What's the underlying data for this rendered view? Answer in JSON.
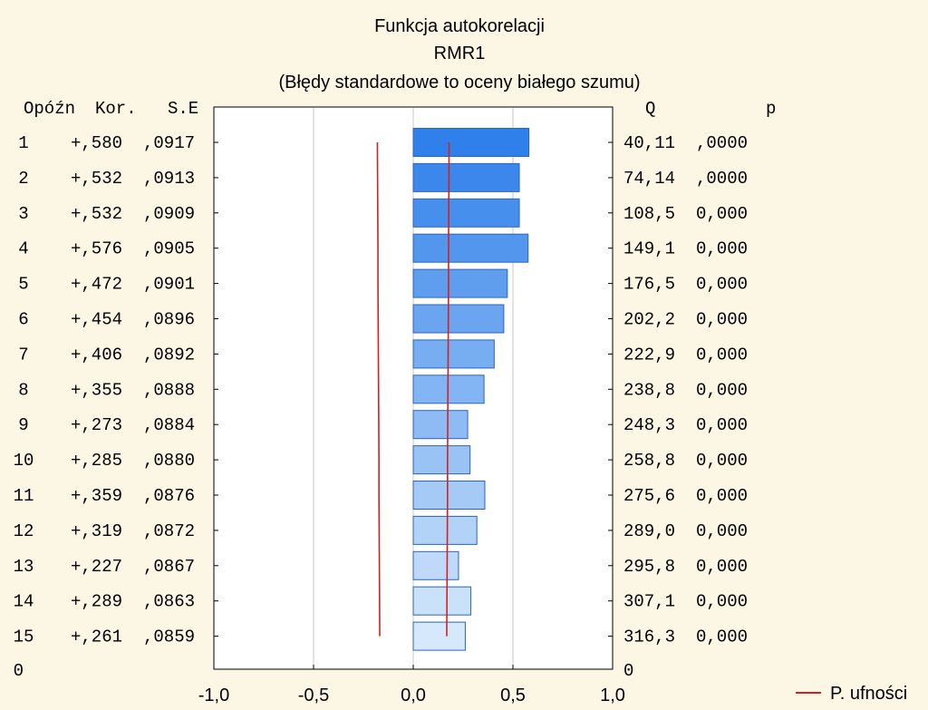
{
  "chart_data": {
    "type": "bar",
    "orientation": "horizontal",
    "title": "Funkcja autokorelacji",
    "subtitle": "RMR1",
    "subtitle2": "(Błędy standardowe to oceny białego szumu)",
    "columns": {
      "lag": "Opóźn",
      "corr": "Kor.",
      "se": "S.E",
      "q": "Q",
      "p": "p"
    },
    "rows": [
      {
        "lag": "1",
        "corr_text": "+,580",
        "se_text": ",0917",
        "q_text": "40,11",
        "p_text": ",0000",
        "corr": 0.58,
        "se": 0.0917,
        "q": 40.11,
        "p": 0.0
      },
      {
        "lag": "2",
        "corr_text": "+,532",
        "se_text": ",0913",
        "q_text": "74,14",
        "p_text": ",0000",
        "corr": 0.532,
        "se": 0.0913,
        "q": 74.14,
        "p": 0.0
      },
      {
        "lag": "3",
        "corr_text": "+,532",
        "se_text": ",0909",
        "q_text": "108,5",
        "p_text": "0,000",
        "corr": 0.532,
        "se": 0.0909,
        "q": 108.5,
        "p": 0.0
      },
      {
        "lag": "4",
        "corr_text": "+,576",
        "se_text": ",0905",
        "q_text": "149,1",
        "p_text": "0,000",
        "corr": 0.576,
        "se": 0.0905,
        "q": 149.1,
        "p": 0.0
      },
      {
        "lag": "5",
        "corr_text": "+,472",
        "se_text": ",0901",
        "q_text": "176,5",
        "p_text": "0,000",
        "corr": 0.472,
        "se": 0.0901,
        "q": 176.5,
        "p": 0.0
      },
      {
        "lag": "6",
        "corr_text": "+,454",
        "se_text": ",0896",
        "q_text": "202,2",
        "p_text": "0,000",
        "corr": 0.454,
        "se": 0.0896,
        "q": 202.2,
        "p": 0.0
      },
      {
        "lag": "7",
        "corr_text": "+,406",
        "se_text": ",0892",
        "q_text": "222,9",
        "p_text": "0,000",
        "corr": 0.406,
        "se": 0.0892,
        "q": 222.9,
        "p": 0.0
      },
      {
        "lag": "8",
        "corr_text": "+,355",
        "se_text": ",0888",
        "q_text": "238,8",
        "p_text": "0,000",
        "corr": 0.355,
        "se": 0.0888,
        "q": 238.8,
        "p": 0.0
      },
      {
        "lag": "9",
        "corr_text": "+,273",
        "se_text": ",0884",
        "q_text": "248,3",
        "p_text": "0,000",
        "corr": 0.273,
        "se": 0.0884,
        "q": 248.3,
        "p": 0.0
      },
      {
        "lag": "10",
        "corr_text": "+,285",
        "se_text": ",0880",
        "q_text": "258,8",
        "p_text": "0,000",
        "corr": 0.285,
        "se": 0.088,
        "q": 258.8,
        "p": 0.0
      },
      {
        "lag": "11",
        "corr_text": "+,359",
        "se_text": ",0876",
        "q_text": "275,6",
        "p_text": "0,000",
        "corr": 0.359,
        "se": 0.0876,
        "q": 275.6,
        "p": 0.0
      },
      {
        "lag": "12",
        "corr_text": "+,319",
        "se_text": ",0872",
        "q_text": "289,0",
        "p_text": "0,000",
        "corr": 0.319,
        "se": 0.0872,
        "q": 289.0,
        "p": 0.0
      },
      {
        "lag": "13",
        "corr_text": "+,227",
        "se_text": ",0867",
        "q_text": "295,8",
        "p_text": "0,000",
        "corr": 0.227,
        "se": 0.0867,
        "q": 295.8,
        "p": 0.0
      },
      {
        "lag": "14",
        "corr_text": "+,289",
        "se_text": ",0863",
        "q_text": "307,1",
        "p_text": "0,000",
        "corr": 0.289,
        "se": 0.0863,
        "q": 307.1,
        "p": 0.0
      },
      {
        "lag": "15",
        "corr_text": "+,261",
        "se_text": ",0859",
        "q_text": "316,3",
        "p_text": "0,000",
        "corr": 0.261,
        "se": 0.0859,
        "q": 316.3,
        "p": 0.0
      }
    ],
    "extra_row_label_left": "0",
    "extra_row_label_right": "0",
    "x_ticks": [
      {
        "value": -1.0,
        "label": "-1,0"
      },
      {
        "value": -0.5,
        "label": "-0,5"
      },
      {
        "value": 0.0,
        "label": "0,0"
      },
      {
        "value": 0.5,
        "label": "0,5"
      },
      {
        "value": 1.0,
        "label": "1,0"
      }
    ],
    "xlim": [
      -1.0,
      1.0
    ],
    "confidence_lines": {
      "name": "P. ufności",
      "upper": [
        0.18,
        0.179,
        0.178,
        0.177,
        0.177,
        0.176,
        0.175,
        0.174,
        0.173,
        0.172,
        0.172,
        0.171,
        0.17,
        0.169,
        0.168
      ],
      "lower": [
        -0.18,
        -0.179,
        -0.178,
        -0.177,
        -0.177,
        -0.176,
        -0.175,
        -0.174,
        -0.173,
        -0.172,
        -0.172,
        -0.171,
        -0.17,
        -0.169,
        -0.168
      ]
    },
    "grid": true,
    "legend": "bottom-right",
    "colors": {
      "background": "#fcf6e4",
      "plot_bg": "#ffffff",
      "bar_dark": "#2f80ea",
      "bar_light": "#d6e8fb",
      "bar_stroke": "#2b64c4",
      "confidence": "#d62020",
      "grid": "#c8c8c8"
    }
  }
}
